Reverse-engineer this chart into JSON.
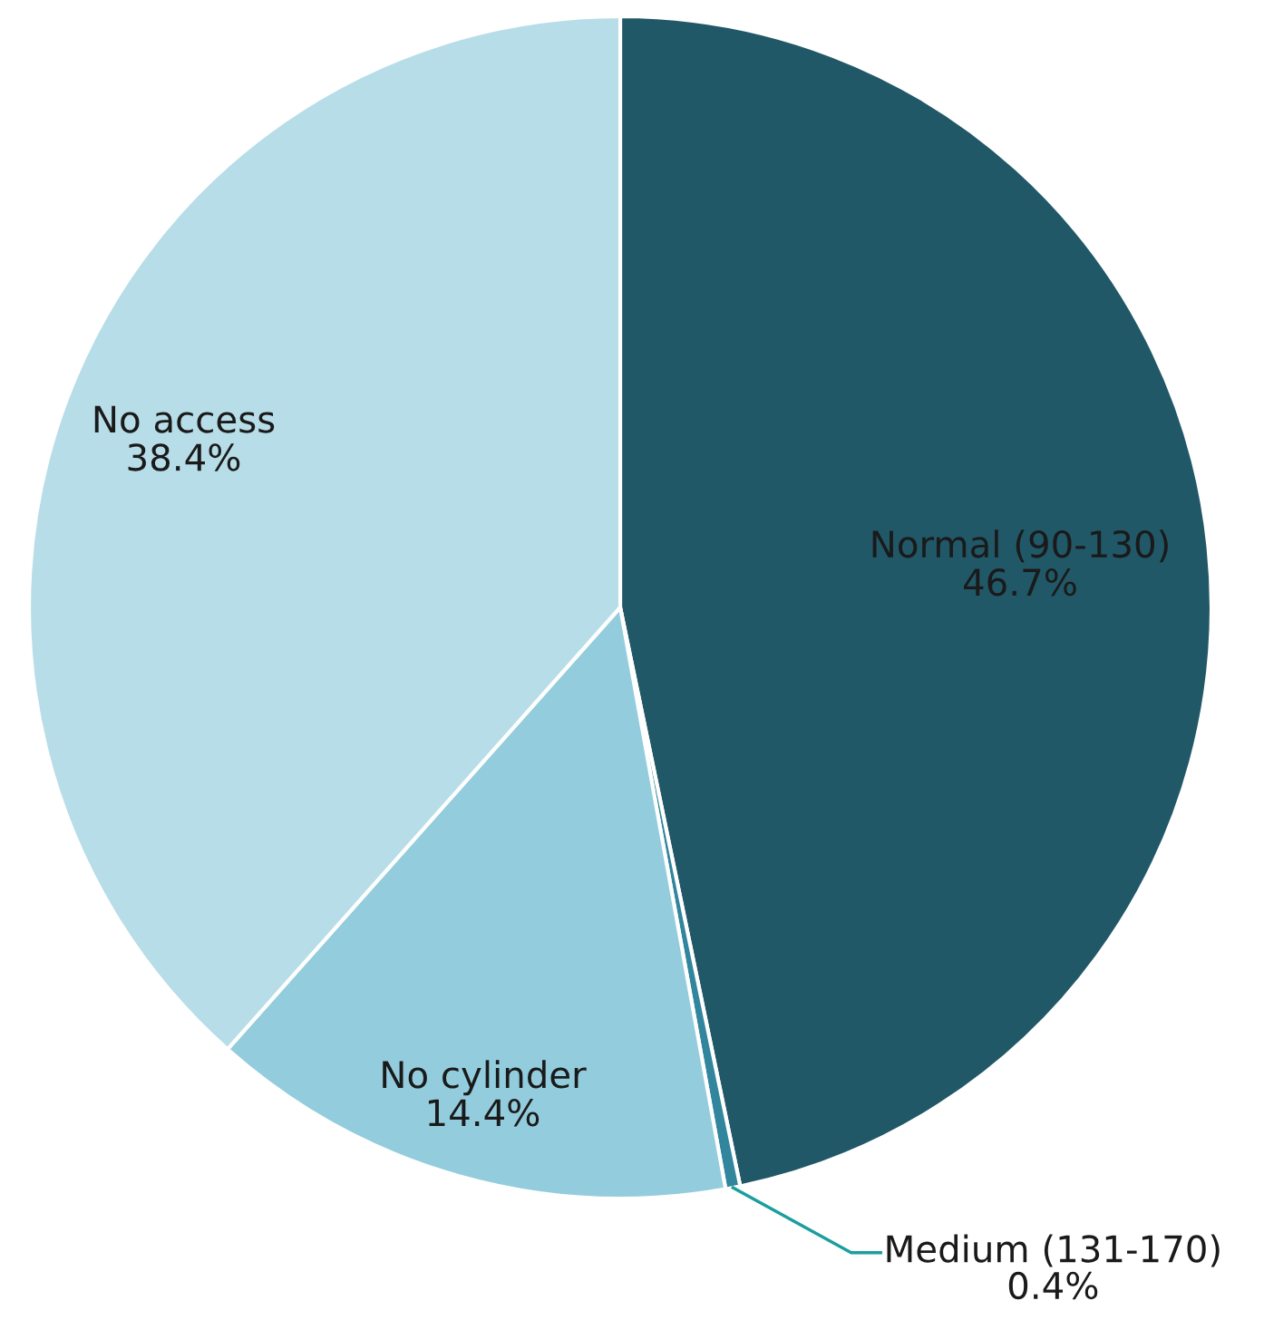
{
  "chart_data": {
    "type": "pie",
    "categories": [
      "Normal (90-130)",
      "Medium (131-170)",
      "No cylinder",
      "No access"
    ],
    "values": [
      46.7,
      0.4,
      14.4,
      38.4
    ],
    "colors": [
      "#215868",
      "#31859c",
      "#93cddd",
      "#b7dde8"
    ],
    "value_labels": [
      "46.7%",
      "0.4%",
      "14.4%",
      "38.4%"
    ]
  }
}
